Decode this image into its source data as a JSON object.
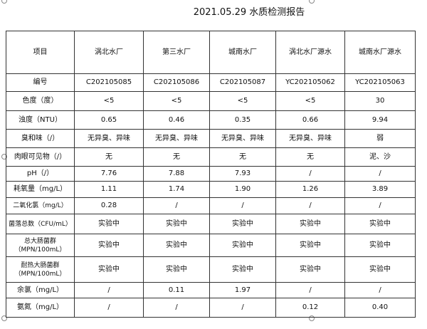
{
  "title": "2021.05.29 水质检测报告",
  "header": [
    "项目",
    "涡北水厂",
    "第三水厂",
    "城南水厂",
    "涡北水厂源水",
    "城南水厂源水"
  ],
  "rows": [
    {
      "item": "编号",
      "values": [
        "C202105085",
        "C202105086",
        "C202105087",
        "YC202105062",
        "YC202105063"
      ]
    },
    {
      "item": "色度（度）",
      "values": [
        "<5",
        "<5",
        "<5",
        "<5",
        "30"
      ]
    },
    {
      "item": "浊度（NTU）",
      "values": [
        "0.65",
        "0.46",
        "0.35",
        "0.66",
        "9.94"
      ]
    },
    {
      "item": "臭和味（/）",
      "values": [
        "无异臭、异味",
        "无异臭、异味",
        "无异臭、异味",
        "无异臭、异味",
        "弱"
      ]
    },
    {
      "item": "肉眼可见物（/）",
      "values": [
        "无",
        "无",
        "无",
        "无",
        "泥、沙"
      ]
    },
    {
      "item": "pH（/）",
      "values": [
        "7.76",
        "7.88",
        "7.93",
        "/",
        "/"
      ]
    },
    {
      "item": "耗氧量（mg/L）",
      "values": [
        "1.11",
        "1.74",
        "1.90",
        "1.26",
        "3.89"
      ]
    },
    {
      "item": "二氧化氯（mg/L）",
      "values": [
        "0.28",
        "/",
        "/",
        "/",
        "/"
      ]
    },
    {
      "item": "菌落总数（CFU/mL）",
      "values": [
        "实验中",
        "实验中",
        "实验中",
        "实验中",
        "实验中"
      ]
    },
    {
      "item": "总大肠菌群\n（MPN/100mL）",
      "values": [
        "实验中",
        "实验中",
        "实验中",
        "实验中",
        "实验中"
      ]
    },
    {
      "item": "耐热大肠菌群\n（MPN/100mL）",
      "values": [
        "实验中",
        "实验中",
        "实验中",
        "实验中",
        "实验中"
      ]
    },
    {
      "item": "余氯（mg/L）",
      "values": [
        "/",
        "0.11",
        "1.97",
        "/",
        "/"
      ]
    },
    {
      "item": "氨氮（mg/L）",
      "values": [
        "/",
        "/",
        "/",
        "0.12",
        "0.40"
      ]
    }
  ]
}
